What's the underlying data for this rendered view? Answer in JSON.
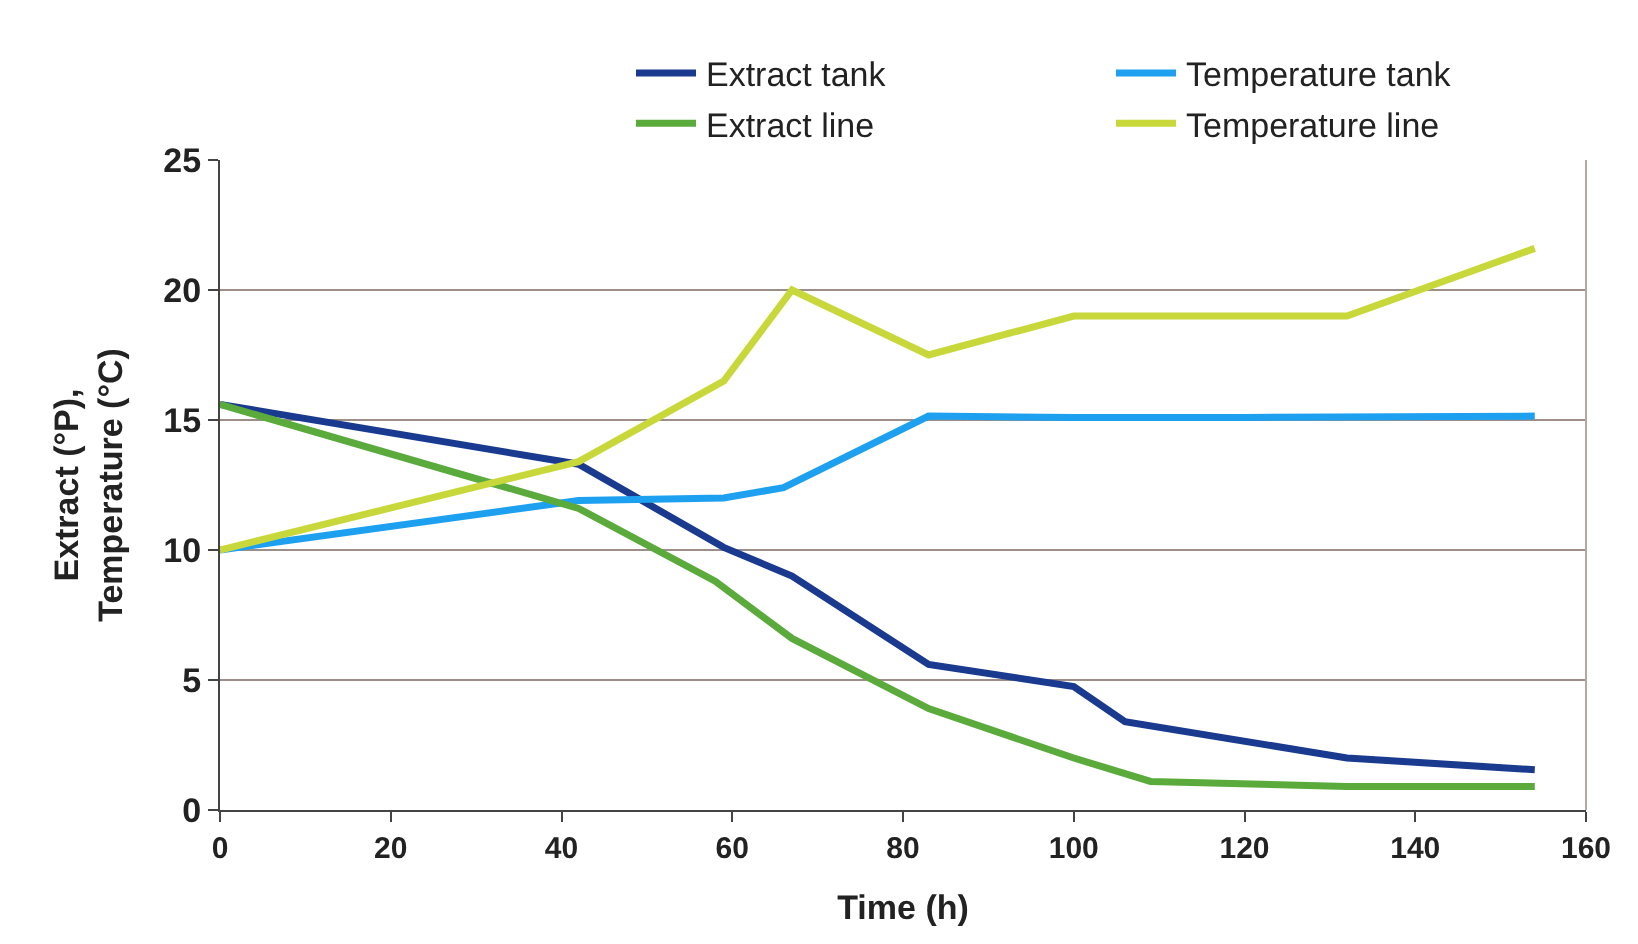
{
  "chart_data": {
    "type": "line",
    "xlabel": "Time (h)",
    "ylabel": "Extract (°P),\nTemperature (°C)",
    "xlim": [
      0,
      160
    ],
    "xticks": [
      0,
      20,
      40,
      60,
      80,
      100,
      120,
      140,
      160
    ],
    "ylim": [
      0,
      25
    ],
    "yticks": [
      0,
      5,
      10,
      15,
      20,
      25
    ],
    "grid": "y",
    "legend": "top right",
    "marker": "none",
    "line_style": "solid",
    "series": [
      {
        "name": "Extract tank",
        "color": "#1a3a8f",
        "x": [
          0,
          42,
          59,
          67,
          83,
          100,
          106,
          132,
          154
        ],
        "values": [
          15.6,
          13.3,
          10.1,
          9.0,
          5.6,
          4.75,
          3.4,
          2.0,
          1.55
        ]
      },
      {
        "name": "Temperature tank",
        "color": "#1ea0f0",
        "x": [
          0,
          42,
          59,
          66,
          83,
          100,
          120,
          154
        ],
        "values": [
          10,
          11.9,
          12,
          12.4,
          15.15,
          15.1,
          15.1,
          15.15
        ]
      },
      {
        "name": "Extract line",
        "color": "#5aab3c",
        "x": [
          0,
          42,
          58,
          67,
          83,
          100,
          109,
          132,
          154
        ],
        "values": [
          15.6,
          11.6,
          8.8,
          6.6,
          3.9,
          2.0,
          1.1,
          0.9,
          0.9
        ]
      },
      {
        "name": "Temperature line",
        "color": "#c8d83a",
        "x": [
          0,
          42,
          59,
          67,
          83,
          100,
          132,
          154
        ],
        "values": [
          10,
          13.4,
          16.5,
          20,
          17.5,
          19,
          19,
          21.6
        ]
      }
    ]
  }
}
